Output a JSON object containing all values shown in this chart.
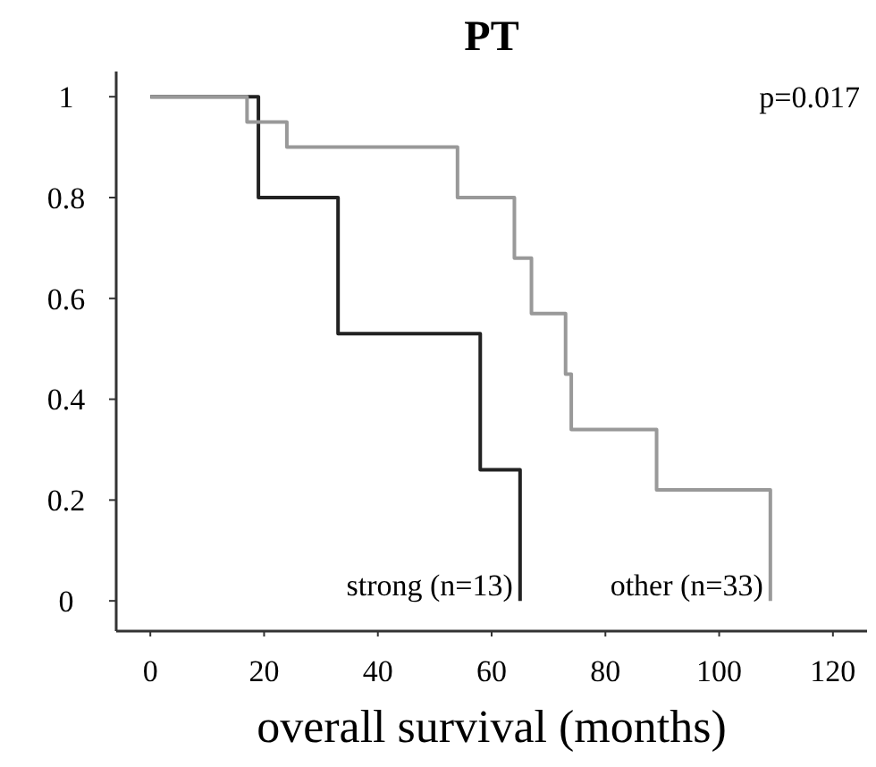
{
  "chart_data": {
    "type": "step",
    "title": "PT",
    "xlabel": "overall survival (months)",
    "xlim": [
      -6,
      126
    ],
    "xticks": [
      0,
      20,
      40,
      60,
      80,
      100,
      120
    ],
    "ylim": [
      -0.06,
      1.05
    ],
    "yticks": [
      0,
      0.2,
      0.4,
      0.6,
      0.8,
      1
    ],
    "grid": false,
    "annotations": [
      "p=0.017"
    ],
    "series": [
      {
        "name": "strong (n=13)",
        "color": "#222222",
        "x": [
          0,
          19,
          33,
          58,
          65
        ],
        "values": [
          1,
          0.8,
          0.53,
          0.26,
          0
        ]
      },
      {
        "name": "other (n=33)",
        "color": "#999999",
        "x": [
          0,
          17,
          24,
          54,
          64,
          67,
          73,
          74,
          89,
          109
        ],
        "values": [
          1,
          0.95,
          0.9,
          0.8,
          0.68,
          0.57,
          0.45,
          0.34,
          0.22,
          0
        ]
      }
    ]
  }
}
